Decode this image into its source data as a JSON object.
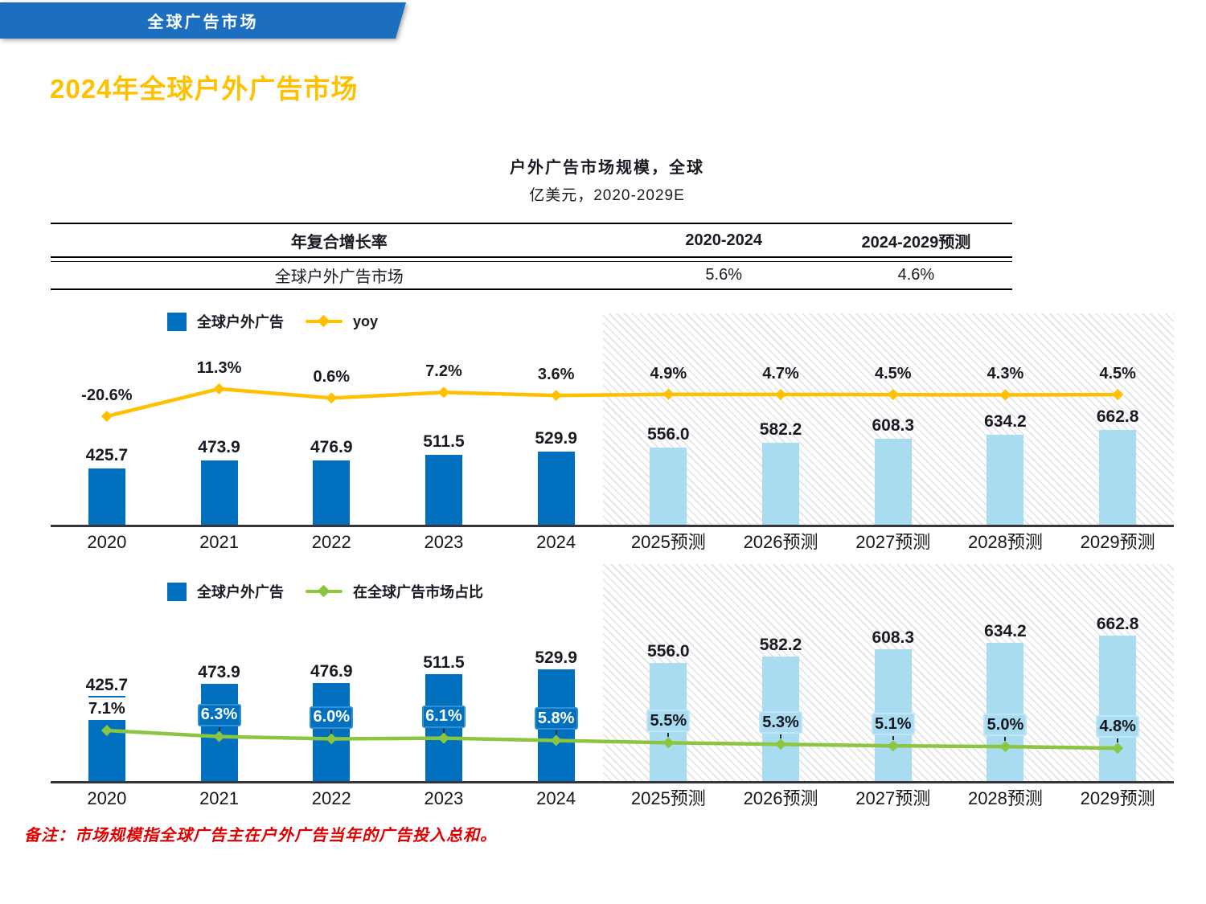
{
  "banner": {
    "label": "全球广告市场"
  },
  "page_title": "2024年全球户外广告市场",
  "chart_header": {
    "title": "户外广告市场规模，全球",
    "subtitle": "亿美元，2020-2029E"
  },
  "summary_table": {
    "col1_header": "年复合增长率",
    "col2_header": "2020-2024",
    "col3_header": "2024-2029预测",
    "row_label": "全球户外广告市场",
    "cagr_2020_2024": "5.6%",
    "cagr_2024_2029": "4.6%"
  },
  "footnote": "备注：市场规模指全球广告主在户外广告当年的广告投入总和。",
  "colors": {
    "banner_blue": "#1B6FBE",
    "title_gold": "#FFC000",
    "bar_blue": "#0070BF",
    "bar_light_blue": "#A9DCF1",
    "yoy_yellow": "#FFC000",
    "share_green": "#8CC540",
    "footnote_red": "#E00000"
  },
  "chart_data": [
    {
      "type": "bar+line",
      "title": "户外广告市场规模，全球",
      "unit": "亿美元",
      "period": "2020-2029E",
      "legend_position": "top-left",
      "grid": false,
      "categories": [
        "2020",
        "2021",
        "2022",
        "2023",
        "2024",
        "2025预测",
        "2026预测",
        "2027预测",
        "2028预测",
        "2029预测"
      ],
      "forecast_from_index": 5,
      "bar_series": {
        "name": "全球户外广告",
        "values": [
          425.7,
          473.9,
          476.9,
          511.5,
          529.9,
          556.0,
          582.2,
          608.3,
          634.2,
          662.8
        ]
      },
      "line_series": {
        "name": "yoy",
        "unit": "%",
        "values": [
          -20.6,
          11.3,
          0.6,
          7.2,
          3.6,
          4.9,
          4.7,
          4.5,
          4.3,
          4.5
        ]
      }
    },
    {
      "type": "bar+line",
      "title": "户外广告市场规模，全球",
      "unit": "亿美元",
      "period": "2020-2029E",
      "legend_position": "top-left",
      "grid": false,
      "categories": [
        "2020",
        "2021",
        "2022",
        "2023",
        "2024",
        "2025预测",
        "2026预测",
        "2027预测",
        "2028预测",
        "2029预测"
      ],
      "forecast_from_index": 5,
      "bar_series": {
        "name": "全球户外广告",
        "values": [
          425.7,
          473.9,
          476.9,
          511.5,
          529.9,
          556.0,
          582.2,
          608.3,
          634.2,
          662.8
        ]
      },
      "line_series": {
        "name": "在全球广告市场占比",
        "unit": "%",
        "values": [
          7.1,
          6.3,
          6.0,
          6.1,
          5.8,
          5.5,
          5.3,
          5.1,
          5.0,
          4.8
        ]
      }
    }
  ]
}
